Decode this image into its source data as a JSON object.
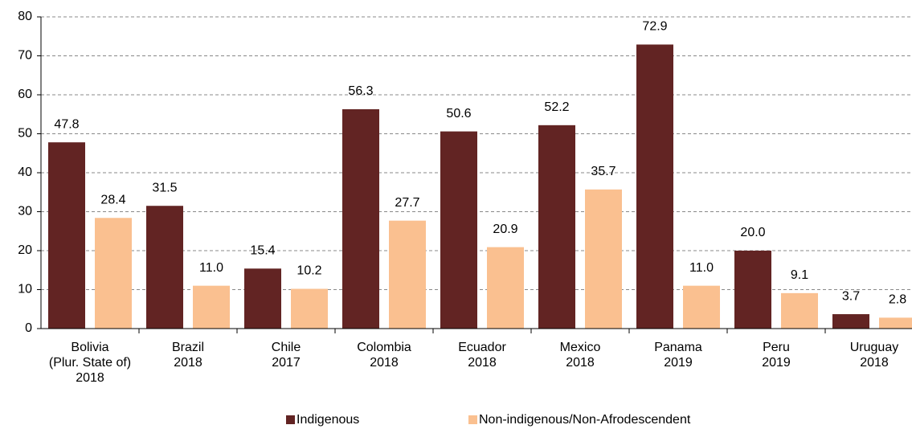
{
  "chart_data": {
    "type": "bar",
    "categories": [
      [
        "Bolivia",
        "(Plur. State of)",
        "2018"
      ],
      [
        "Brazil",
        "2018"
      ],
      [
        "Chile",
        "2017"
      ],
      [
        "Colombia",
        "2018"
      ],
      [
        "Ecuador",
        "2018"
      ],
      [
        "Mexico",
        "2018"
      ],
      [
        "Panama",
        "2019"
      ],
      [
        "Peru",
        "2019"
      ],
      [
        "Uruguay",
        "2018"
      ]
    ],
    "series": [
      {
        "name": "Indigenous",
        "color": "#622423",
        "values": [
          47.8,
          31.5,
          15.4,
          56.3,
          50.6,
          52.2,
          72.9,
          20.0,
          3.7
        ],
        "value_labels": [
          "47.8",
          "31.5",
          "15.4",
          "56.3",
          "50.6",
          "52.2",
          "72.9",
          "20.0",
          "3.7"
        ]
      },
      {
        "name": "Non-indigenous/Non-Afrodescendent",
        "color": "#fac090",
        "values": [
          28.4,
          11.0,
          10.2,
          27.7,
          20.9,
          35.7,
          11.0,
          9.1,
          2.8
        ],
        "value_labels": [
          "28.4",
          "11.0",
          "10.2",
          "27.7",
          "20.9",
          "35.7",
          "11.0",
          "9.1",
          "2.8"
        ]
      }
    ],
    "ylim": [
      0,
      80
    ],
    "yticks": [
      0,
      10,
      20,
      30,
      40,
      50,
      60,
      70,
      80
    ],
    "grid": true,
    "legend": "bottom"
  }
}
